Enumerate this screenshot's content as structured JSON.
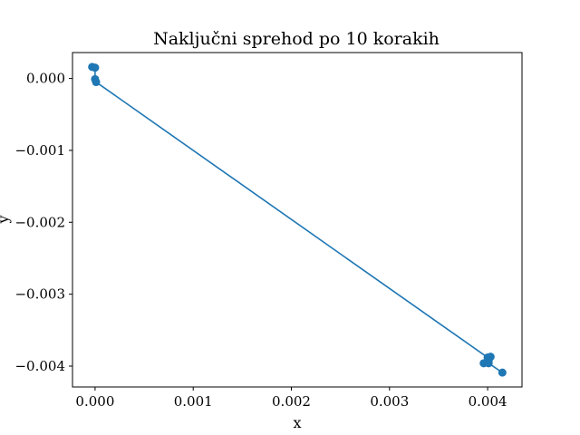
{
  "chart_data": {
    "type": "line",
    "title": "Naključni sprehod po 10 korakih",
    "xlabel": "x",
    "ylabel": "y",
    "xlim": [
      -0.00023,
      0.00435
    ],
    "ylim": [
      -0.00429,
      0.00036
    ],
    "x_ticks": [
      0.0,
      0.001,
      0.002,
      0.003,
      0.004
    ],
    "x_tick_labels": [
      "0.000",
      "0.001",
      "0.002",
      "0.003",
      "0.004"
    ],
    "y_ticks": [
      0.0,
      -0.001,
      -0.002,
      -0.003,
      -0.004
    ],
    "y_tick_labels": [
      "0.000",
      "−0.001",
      "−0.002",
      "−0.003",
      "−0.004"
    ],
    "grid": false,
    "color": "#1f77b4",
    "series": [
      {
        "x": [
          -3e-05,
          0.0,
          0.0,
          1e-05,
          0.004,
          0.00403,
          0.00401,
          0.00396,
          0.00401,
          0.00415
        ],
        "y": [
          0.00016,
          0.00015,
          -1e-05,
          -5e-05,
          -0.00388,
          -0.00387,
          -0.00393,
          -0.00396,
          -0.00396,
          -0.00409
        ],
        "marker": "o"
      }
    ]
  }
}
